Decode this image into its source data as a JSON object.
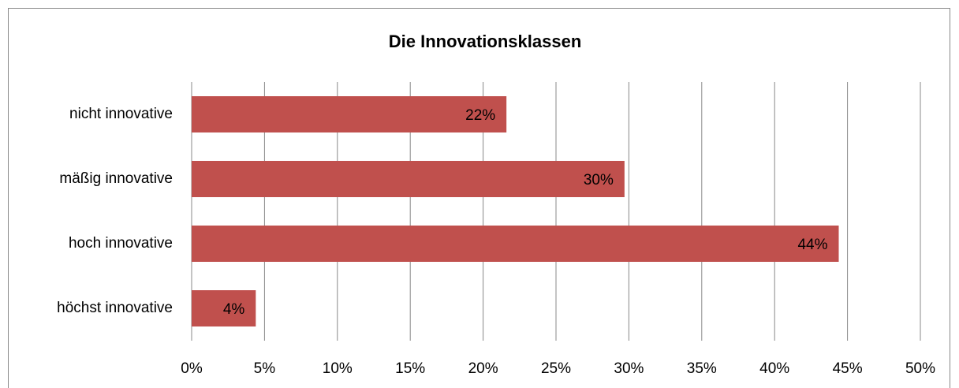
{
  "chart_data": {
    "type": "hbar",
    "title": "Die Innovationsklassen",
    "categories": [
      "nicht innovative",
      "mäßig innovative",
      "hoch innovative",
      "höchst innovative"
    ],
    "values": [
      21.6,
      29.7,
      44.4,
      4.4
    ],
    "value_labels": [
      "22%",
      "30%",
      "44%",
      "4%"
    ],
    "color": "#c0504d",
    "xlim": [
      0,
      50
    ],
    "xticks": [
      {
        "value": 0,
        "label": "0%"
      },
      {
        "value": 5,
        "label": "5%"
      },
      {
        "value": 10,
        "label": "10%"
      },
      {
        "value": 15,
        "label": "15%"
      },
      {
        "value": 20,
        "label": "20%"
      },
      {
        "value": 25,
        "label": "25%"
      },
      {
        "value": 30,
        "label": "30%"
      },
      {
        "value": 35,
        "label": "35%"
      },
      {
        "value": 40,
        "label": "40%"
      },
      {
        "value": 45,
        "label": "45%"
      },
      {
        "value": 50,
        "label": "50%"
      }
    ],
    "grid": true
  }
}
